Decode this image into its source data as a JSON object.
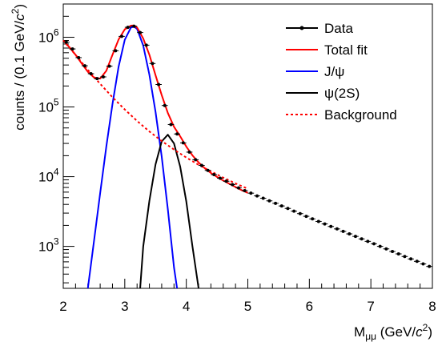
{
  "chart_data": {
    "type": "line",
    "title": "",
    "xlabel_main": "M",
    "xlabel_sub": "μμ",
    "xlabel_unit_pre": " (GeV/",
    "xlabel_unit_c": "c",
    "xlabel_unit_pow": "2",
    "xlabel_unit_post": ")",
    "ylabel_pre": "counts / (0.1 GeV/",
    "ylabel_c": "c",
    "ylabel_pow": "2",
    "ylabel_post": ")",
    "xlim": [
      2,
      8
    ],
    "ylim": [
      250,
      3000000
    ],
    "y_scale": "log",
    "x_ticks": [
      "2",
      "3",
      "4",
      "5",
      "6",
      "7",
      "8"
    ],
    "y_ticks": [
      {
        "value": 1000,
        "base": "10",
        "exp": "3"
      },
      {
        "value": 10000,
        "base": "10",
        "exp": "4"
      },
      {
        "value": 100000,
        "base": "10",
        "exp": "5"
      },
      {
        "value": 1000000,
        "base": "10",
        "exp": "6"
      }
    ],
    "legend_position": "top-right",
    "legend": [
      {
        "label": "Data",
        "color": "#000000",
        "style": "marker"
      },
      {
        "label": "Total fit",
        "color": "#ff0000",
        "style": "solid"
      },
      {
        "label": "J/ψ",
        "color": "#0000ff",
        "style": "solid"
      },
      {
        "label": "ψ(2S)",
        "color": "#000000",
        "style": "solid"
      },
      {
        "label": "Background",
        "color": "#ff0000",
        "style": "dashed"
      }
    ],
    "data_points": {
      "x": [
        2.05,
        2.15,
        2.25,
        2.35,
        2.45,
        2.55,
        2.65,
        2.75,
        2.85,
        2.95,
        3.05,
        3.15,
        3.25,
        3.35,
        3.45,
        3.55,
        3.65,
        3.75,
        3.85,
        3.95,
        4.05,
        4.15,
        4.25,
        4.35,
        4.45,
        4.55,
        4.65,
        4.75,
        4.85,
        4.95,
        5.05,
        5.15,
        5.25,
        5.35,
        5.45,
        5.55,
        5.65,
        5.75,
        5.85,
        5.95,
        6.05,
        6.15,
        6.25,
        6.35,
        6.45,
        6.55,
        6.65,
        6.75,
        6.85,
        6.95,
        7.05,
        7.15,
        7.25,
        7.35,
        7.45,
        7.55,
        7.65,
        7.75,
        7.85,
        7.95
      ],
      "y": [
        850000,
        680000,
        510000,
        390000,
        300000,
        255000,
        270000,
        385000,
        640000,
        1030000,
        1390000,
        1440000,
        1170000,
        770000,
        420000,
        210000,
        105000,
        56000,
        41000,
        30500,
        22500,
        17500,
        14500,
        12300,
        10700,
        9500,
        8600,
        7700,
        6900,
        6300,
        5800,
        5300,
        4900,
        4500,
        4150,
        3800,
        3500,
        3200,
        2950,
        2700,
        2480,
        2280,
        2100,
        1930,
        1780,
        1640,
        1510,
        1390,
        1280,
        1180,
        1090,
        1000,
        920,
        845,
        780,
        715,
        660,
        610,
        560,
        515
      ]
    },
    "total_fit": {
      "x": [
        2.0,
        2.1,
        2.2,
        2.3,
        2.4,
        2.5,
        2.6,
        2.7,
        2.8,
        2.9,
        3.0,
        3.1,
        3.15,
        3.2,
        3.3,
        3.4,
        3.5,
        3.6,
        3.7,
        3.8,
        3.9,
        4.0,
        4.1,
        4.2,
        4.3,
        4.4,
        4.5,
        4.6,
        4.7,
        4.8,
        4.9,
        5.0
      ],
      "y": [
        900000,
        720000,
        560000,
        420000,
        320000,
        265000,
        255000,
        330000,
        560000,
        930000,
        1300000,
        1470000,
        1480000,
        1380000,
        960000,
        560000,
        285000,
        148000,
        82000,
        52000,
        38000,
        27000,
        20200,
        16000,
        13200,
        11300,
        9900,
        8800,
        7900,
        7100,
        6400,
        5850
      ]
    },
    "jpsi_fit": {
      "x": [
        2.4,
        2.5,
        2.6,
        2.7,
        2.8,
        2.9,
        3.0,
        3.1,
        3.15,
        3.2,
        3.3,
        3.4,
        3.5,
        3.6,
        3.7,
        3.8,
        3.85
      ],
      "y": [
        250,
        1200,
        5800,
        27000,
        110000,
        380000,
        920000,
        1380000,
        1420000,
        1320000,
        760000,
        290000,
        85000,
        19500,
        3400,
        500,
        250
      ]
    },
    "psi2s_fit": {
      "x": [
        3.25,
        3.3,
        3.4,
        3.5,
        3.6,
        3.7,
        3.8,
        3.9,
        4.0,
        4.1,
        4.2
      ],
      "y": [
        250,
        1000,
        4500,
        15000,
        32000,
        40000,
        30000,
        14000,
        4400,
        1000,
        250
      ]
    },
    "background_fit": {
      "x": [
        2.0,
        2.2,
        2.4,
        2.6,
        2.8,
        3.0,
        3.2,
        3.4,
        3.6,
        3.8,
        4.0,
        4.2,
        4.4,
        4.6,
        4.8,
        5.0
      ],
      "y": [
        900000,
        560000,
        340000,
        215000,
        138000,
        92000,
        63000,
        44500,
        32500,
        24500,
        18800,
        14800,
        11900,
        9700,
        8000,
        6700
      ]
    }
  }
}
